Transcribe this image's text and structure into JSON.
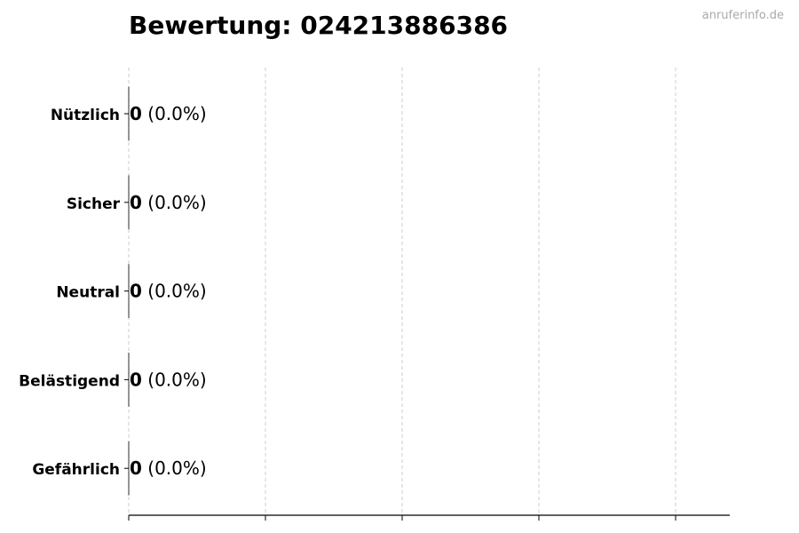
{
  "watermark": "anruferinfo.de",
  "chart_data": {
    "type": "bar",
    "orientation": "horizontal",
    "title": "Bewertung: 024213886386",
    "categories": [
      "Nützlich",
      "Sicher",
      "Neutral",
      "Belästigend",
      "Gefährlich"
    ],
    "values": [
      0,
      0,
      0,
      0,
      0
    ],
    "data_labels": [
      {
        "count": "0",
        "percent": "(0.0%)"
      },
      {
        "count": "0",
        "percent": "(0.0%)"
      },
      {
        "count": "0",
        "percent": "(0.0%)"
      },
      {
        "count": "0",
        "percent": "(0.0%)"
      },
      {
        "count": "0",
        "percent": "(0.0%)"
      }
    ],
    "xlabel": "",
    "ylabel": "",
    "x_tick_labels_shown": false,
    "grid": "x, dashed",
    "colors": {
      "bar_edge": "#000000",
      "grid": "#cccccc",
      "axis": "#000000"
    }
  }
}
